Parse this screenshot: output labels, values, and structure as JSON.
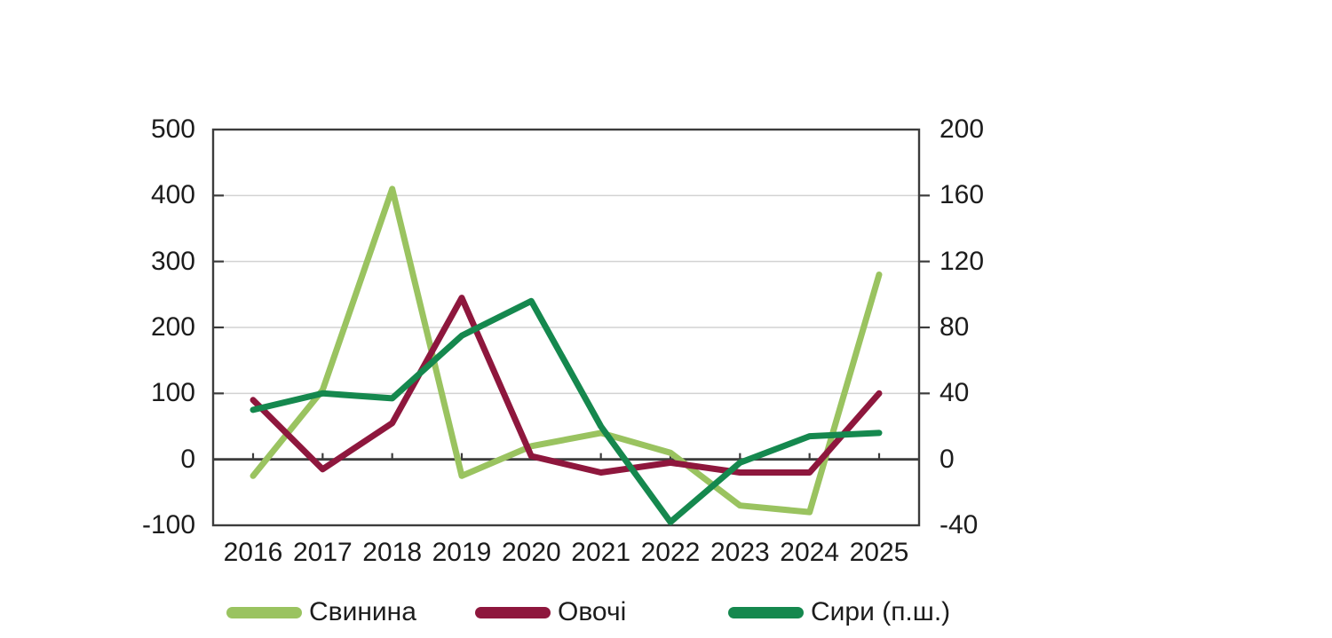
{
  "chart_data": {
    "type": "line",
    "title": "",
    "x": [
      "2016",
      "2017",
      "2018",
      "2019",
      "2020",
      "2021",
      "2022",
      "2023",
      "2024",
      "2025"
    ],
    "series": [
      {
        "name": "Свинина",
        "axis": "left",
        "color": "#9AC360",
        "values": [
          -25,
          105,
          410,
          -25,
          20,
          40,
          10,
          -70,
          -80,
          280
        ]
      },
      {
        "name": "Овочі",
        "axis": "left",
        "color": "#8E173D",
        "values": [
          90,
          -15,
          55,
          245,
          5,
          -20,
          -5,
          -20,
          -20,
          100
        ]
      },
      {
        "name": "Сири (п.ш.)",
        "axis": "right",
        "color": "#15884E",
        "values": [
          30,
          40,
          37,
          75,
          96,
          20,
          -38,
          -2,
          14,
          16
        ]
      }
    ],
    "left_axis": {
      "min": -100,
      "max": 500,
      "step": 100,
      "ticks": [
        "500",
        "400",
        "300",
        "200",
        "100",
        "0",
        "-100"
      ]
    },
    "right_axis": {
      "min": -40,
      "max": 200,
      "step": 40,
      "ticks": [
        "200",
        "160",
        "120",
        "80",
        "40",
        "0",
        "-40"
      ]
    },
    "grid": true,
    "legend_position": "bottom",
    "colors": {
      "frame": "#3C3C3C",
      "zero_line": "#3C3C3C",
      "gridline": "#D2D2D2",
      "text": "#1C1C1C",
      "background": "#FFFFFF"
    }
  }
}
